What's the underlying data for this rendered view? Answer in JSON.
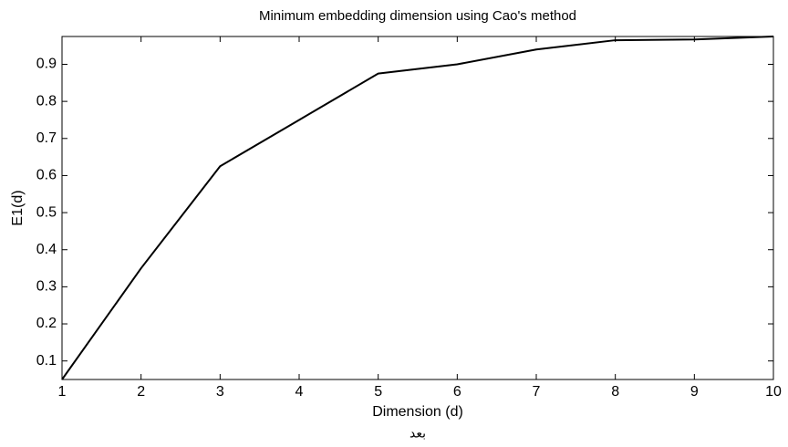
{
  "chart_data": {
    "type": "line",
    "title": "Minimum embedding dimension using Cao's method",
    "xlabel": "Dimension (d)",
    "ylabel": "E1(d)",
    "caption": "بعد",
    "x": [
      1,
      2,
      3,
      4,
      5,
      6,
      7,
      8,
      9,
      10
    ],
    "series": [
      {
        "name": "E1",
        "color": "#000000",
        "values": [
          0.05,
          0.35,
          0.625,
          0.75,
          0.875,
          0.9,
          0.94,
          0.965,
          0.967,
          0.975
        ]
      }
    ],
    "xlim": [
      1,
      10
    ],
    "xticks": [
      1,
      2,
      3,
      4,
      5,
      6,
      7,
      8,
      9,
      10
    ],
    "ylim": [
      0.05,
      0.975
    ],
    "yticks": [
      0.1,
      0.2,
      0.3,
      0.4,
      0.5,
      0.6,
      0.7,
      0.8,
      0.9
    ],
    "grid": false
  }
}
